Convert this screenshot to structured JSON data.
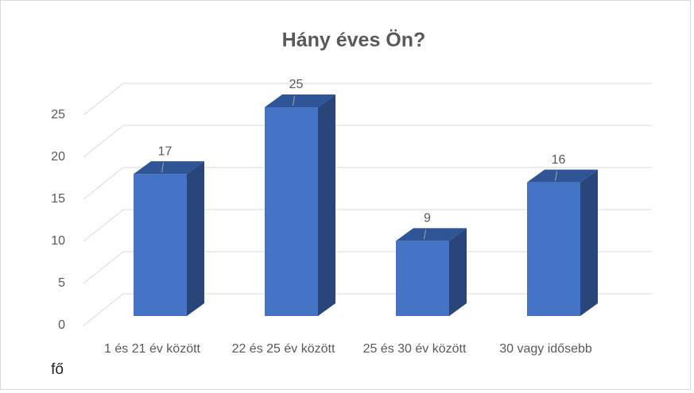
{
  "chart_data": {
    "type": "bar3d",
    "title": "Hány éves Ön?",
    "categories": [
      "1 és 21 év között",
      "22 és 25 év között",
      "25 és 30 év között",
      "30 vagy idősebb"
    ],
    "values": [
      17,
      25,
      9,
      16
    ],
    "color": "#4472c4",
    "ylim": [
      0,
      25
    ],
    "yticks": [
      0,
      5,
      10,
      15,
      20,
      25
    ],
    "grid": true,
    "y_label": "fő"
  }
}
